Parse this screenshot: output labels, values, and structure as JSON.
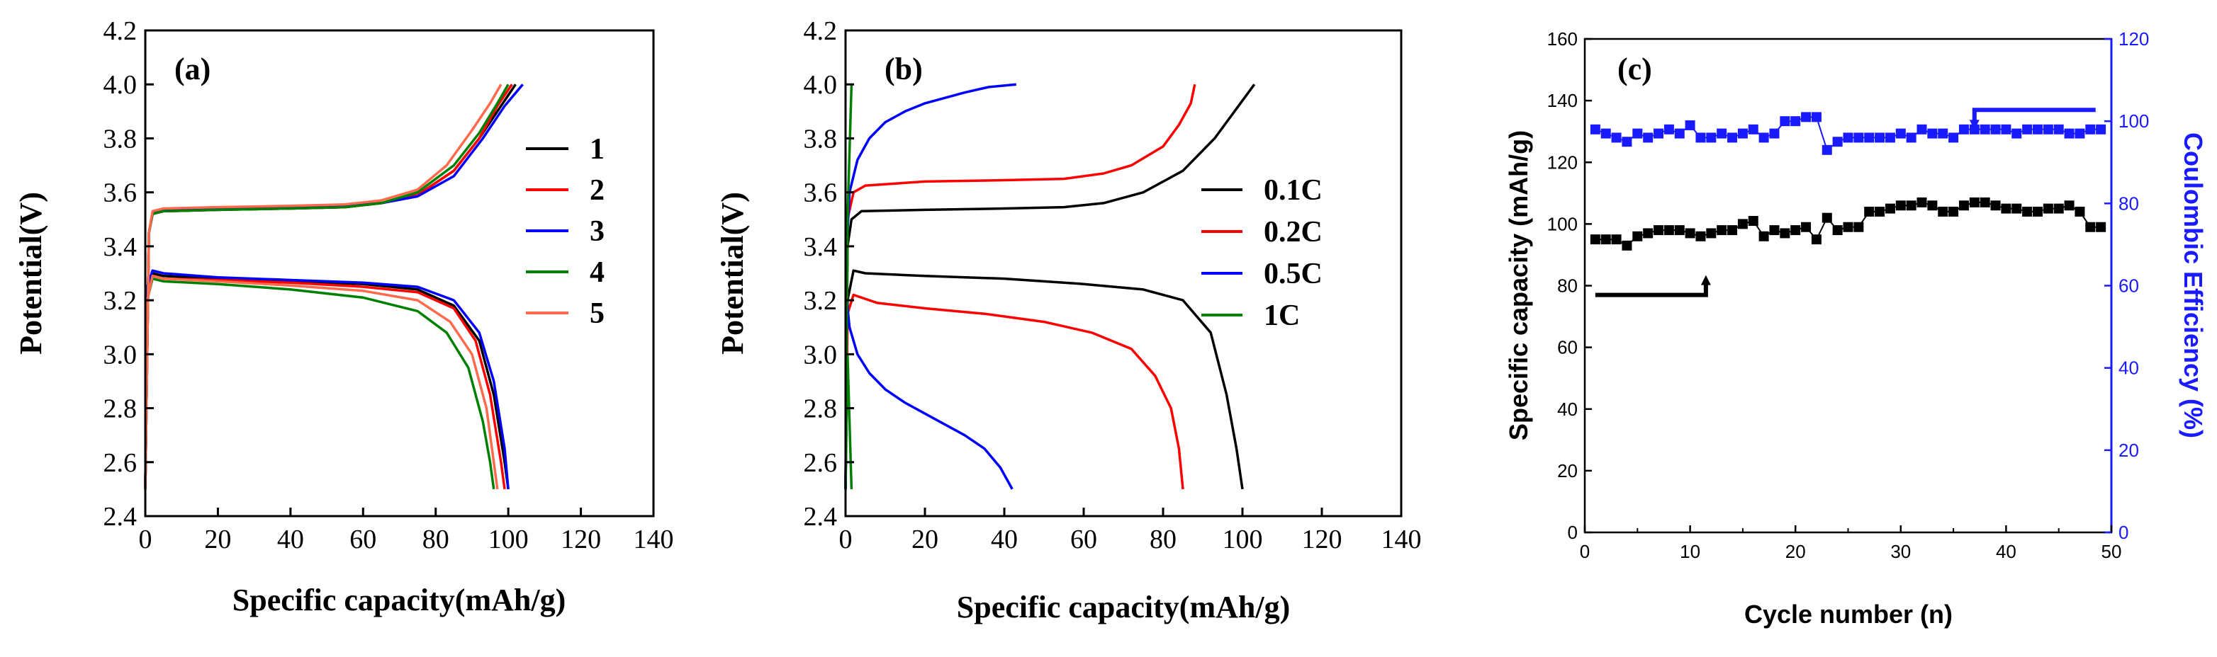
{
  "chart_data": [
    {
      "type": "line",
      "panel_label": "(a)",
      "xlabel": "Specific capacity(mAh/g)",
      "ylabel": "Potential(V)",
      "xlim": [
        0,
        140
      ],
      "ylim": [
        2.4,
        4.2
      ],
      "xticks": [
        "0",
        "20",
        "40",
        "60",
        "80",
        "100",
        "120",
        "140"
      ],
      "yticks": [
        "2.4",
        "2.6",
        "2.8",
        "3.0",
        "3.2",
        "3.4",
        "3.6",
        "3.8",
        "4.0",
        "4.2"
      ],
      "series": [
        {
          "name": "1",
          "color": "#000000",
          "charge": [
            [
              0,
              2.5
            ],
            [
              1,
              3.45
            ],
            [
              2,
              3.52
            ],
            [
              5,
              3.53
            ],
            [
              20,
              3.535
            ],
            [
              40,
              3.54
            ],
            [
              55,
              3.545
            ],
            [
              65,
              3.56
            ],
            [
              75,
              3.59
            ],
            [
              85,
              3.68
            ],
            [
              92,
              3.8
            ],
            [
              98,
              3.92
            ],
            [
              102,
              4.0
            ]
          ],
          "discharge": [
            [
              0,
              2.5
            ],
            [
              0.5,
              3.2
            ],
            [
              2,
              3.3
            ],
            [
              5,
              3.29
            ],
            [
              20,
              3.28
            ],
            [
              40,
              3.27
            ],
            [
              60,
              3.26
            ],
            [
              75,
              3.24
            ],
            [
              85,
              3.18
            ],
            [
              92,
              3.05
            ],
            [
              96,
              2.85
            ],
            [
              99,
              2.6
            ],
            [
              100,
              2.5
            ]
          ]
        },
        {
          "name": "2",
          "color": "#ff0000",
          "charge": [
            [
              0,
              2.5
            ],
            [
              1,
              3.45
            ],
            [
              2,
              3.52
            ],
            [
              5,
              3.53
            ],
            [
              20,
              3.535
            ],
            [
              40,
              3.54
            ],
            [
              55,
              3.545
            ],
            [
              65,
              3.56
            ],
            [
              75,
              3.59
            ],
            [
              85,
              3.68
            ],
            [
              92,
              3.8
            ],
            [
              97,
              3.92
            ],
            [
              101,
              4.0
            ]
          ],
          "discharge": [
            [
              0,
              2.5
            ],
            [
              0.5,
              3.2
            ],
            [
              2,
              3.29
            ],
            [
              5,
              3.28
            ],
            [
              20,
              3.275
            ],
            [
              40,
              3.265
            ],
            [
              60,
              3.25
            ],
            [
              75,
              3.23
            ],
            [
              85,
              3.17
            ],
            [
              91,
              3.05
            ],
            [
              95,
              2.85
            ],
            [
              98,
              2.6
            ],
            [
              99,
              2.5
            ]
          ]
        },
        {
          "name": "3",
          "color": "#0000ff",
          "charge": [
            [
              0,
              2.5
            ],
            [
              1,
              3.45
            ],
            [
              2,
              3.52
            ],
            [
              5,
              3.535
            ],
            [
              20,
              3.54
            ],
            [
              40,
              3.545
            ],
            [
              55,
              3.55
            ],
            [
              65,
              3.56
            ],
            [
              75,
              3.585
            ],
            [
              85,
              3.66
            ],
            [
              93,
              3.8
            ],
            [
              99,
              3.92
            ],
            [
              104,
              4.0
            ]
          ],
          "discharge": [
            [
              0,
              2.5
            ],
            [
              0.5,
              3.25
            ],
            [
              2,
              3.31
            ],
            [
              5,
              3.3
            ],
            [
              20,
              3.285
            ],
            [
              40,
              3.275
            ],
            [
              60,
              3.265
            ],
            [
              75,
              3.25
            ],
            [
              85,
              3.2
            ],
            [
              92,
              3.08
            ],
            [
              96,
              2.9
            ],
            [
              99,
              2.65
            ],
            [
              100,
              2.5
            ]
          ]
        },
        {
          "name": "4",
          "color": "#008000",
          "charge": [
            [
              0,
              2.5
            ],
            [
              1,
              3.45
            ],
            [
              2,
              3.52
            ],
            [
              5,
              3.53
            ],
            [
              20,
              3.535
            ],
            [
              40,
              3.54
            ],
            [
              55,
              3.545
            ],
            [
              65,
              3.56
            ],
            [
              75,
              3.6
            ],
            [
              85,
              3.7
            ],
            [
              92,
              3.82
            ],
            [
              97,
              3.93
            ],
            [
              100,
              4.0
            ]
          ],
          "discharge": [
            [
              0,
              2.5
            ],
            [
              0.5,
              3.2
            ],
            [
              2,
              3.28
            ],
            [
              5,
              3.27
            ],
            [
              20,
              3.26
            ],
            [
              40,
              3.24
            ],
            [
              60,
              3.21
            ],
            [
              75,
              3.16
            ],
            [
              83,
              3.08
            ],
            [
              89,
              2.95
            ],
            [
              93,
              2.75
            ],
            [
              95,
              2.6
            ],
            [
              96,
              2.5
            ]
          ]
        },
        {
          "name": "5",
          "color": "#ff6a4d",
          "charge": [
            [
              0,
              2.5
            ],
            [
              1,
              3.45
            ],
            [
              2,
              3.53
            ],
            [
              5,
              3.54
            ],
            [
              20,
              3.545
            ],
            [
              40,
              3.55
            ],
            [
              55,
              3.555
            ],
            [
              65,
              3.57
            ],
            [
              75,
              3.61
            ],
            [
              83,
              3.7
            ],
            [
              90,
              3.83
            ],
            [
              95,
              3.93
            ],
            [
              98,
              4.0
            ]
          ],
          "discharge": [
            [
              0,
              2.5
            ],
            [
              0.5,
              3.2
            ],
            [
              2,
              3.29
            ],
            [
              5,
              3.28
            ],
            [
              20,
              3.27
            ],
            [
              40,
              3.255
            ],
            [
              60,
              3.235
            ],
            [
              75,
              3.2
            ],
            [
              84,
              3.12
            ],
            [
              90,
              3.0
            ],
            [
              94,
              2.8
            ],
            [
              96,
              2.6
            ],
            [
              97,
              2.5
            ]
          ]
        }
      ]
    },
    {
      "type": "line",
      "panel_label": "(b)",
      "xlabel": "Specific capacity(mAh/g)",
      "ylabel": "Potential(V)",
      "xlim": [
        0,
        140
      ],
      "ylim": [
        2.4,
        4.2
      ],
      "xticks": [
        "0",
        "20",
        "40",
        "60",
        "80",
        "100",
        "120",
        "140"
      ],
      "yticks": [
        "2.4",
        "2.6",
        "2.8",
        "3.0",
        "3.2",
        "3.4",
        "3.6",
        "3.8",
        "4.0",
        "4.2"
      ],
      "series": [
        {
          "name": "0.1C",
          "color": "#000000",
          "charge": [
            [
              0,
              2.5
            ],
            [
              0.5,
              3.4
            ],
            [
              1.5,
              3.5
            ],
            [
              4,
              3.53
            ],
            [
              20,
              3.535
            ],
            [
              40,
              3.54
            ],
            [
              55,
              3.545
            ],
            [
              65,
              3.56
            ],
            [
              75,
              3.6
            ],
            [
              85,
              3.68
            ],
            [
              93,
              3.8
            ],
            [
              99,
              3.92
            ],
            [
              103,
              4.0
            ]
          ],
          "discharge": [
            [
              0,
              2.5
            ],
            [
              0.5,
              3.2
            ],
            [
              2,
              3.31
            ],
            [
              5,
              3.3
            ],
            [
              20,
              3.29
            ],
            [
              40,
              3.28
            ],
            [
              60,
              3.26
            ],
            [
              75,
              3.24
            ],
            [
              85,
              3.2
            ],
            [
              92,
              3.08
            ],
            [
              96,
              2.85
            ],
            [
              98.5,
              2.65
            ],
            [
              100,
              2.5
            ]
          ]
        },
        {
          "name": "0.2C",
          "color": "#ff0000",
          "charge": [
            [
              0,
              2.5
            ],
            [
              0.5,
              3.5
            ],
            [
              2,
              3.6
            ],
            [
              5,
              3.625
            ],
            [
              20,
              3.64
            ],
            [
              40,
              3.645
            ],
            [
              55,
              3.65
            ],
            [
              65,
              3.67
            ],
            [
              72,
              3.7
            ],
            [
              80,
              3.77
            ],
            [
              84,
              3.85
            ],
            [
              87,
              3.93
            ],
            [
              88,
              4.0
            ]
          ],
          "discharge": [
            [
              0,
              2.5
            ],
            [
              0.5,
              3.15
            ],
            [
              2,
              3.22
            ],
            [
              8,
              3.19
            ],
            [
              20,
              3.17
            ],
            [
              35,
              3.15
            ],
            [
              50,
              3.12
            ],
            [
              62,
              3.08
            ],
            [
              72,
              3.02
            ],
            [
              78,
              2.92
            ],
            [
              82,
              2.8
            ],
            [
              84,
              2.65
            ],
            [
              85,
              2.5
            ]
          ]
        },
        {
          "name": "0.5C",
          "color": "#0000ff",
          "charge": [
            [
              0,
              2.5
            ],
            [
              0.3,
              3.4
            ],
            [
              1,
              3.6
            ],
            [
              3,
              3.72
            ],
            [
              6,
              3.8
            ],
            [
              10,
              3.86
            ],
            [
              15,
              3.9
            ],
            [
              20,
              3.93
            ],
            [
              25,
              3.95
            ],
            [
              30,
              3.97
            ],
            [
              36,
              3.99
            ],
            [
              43,
              4.0
            ]
          ],
          "discharge": [
            [
              0,
              2.5
            ],
            [
              0.3,
              3.2
            ],
            [
              1,
              3.1
            ],
            [
              3,
              3.0
            ],
            [
              6,
              2.93
            ],
            [
              10,
              2.87
            ],
            [
              15,
              2.82
            ],
            [
              20,
              2.78
            ],
            [
              25,
              2.74
            ],
            [
              30,
              2.7
            ],
            [
              35,
              2.65
            ],
            [
              39,
              2.58
            ],
            [
              42,
              2.5
            ]
          ]
        },
        {
          "name": "1C",
          "color": "#008000",
          "charge": [
            [
              0,
              2.5
            ],
            [
              0.5,
              3.5
            ],
            [
              1.5,
              4.0
            ]
          ],
          "discharge": [
            [
              0,
              2.5
            ],
            [
              0.5,
              3.0
            ],
            [
              1.5,
              2.5
            ]
          ]
        }
      ]
    },
    {
      "type": "scatter",
      "panel_label": "(c)",
      "xlabel": "Cycle number (n)",
      "ylabel": "Specific capacity (mAh/g)",
      "ylabel_right": "Coulombic Efficiency (%)",
      "xlim": [
        0,
        50
      ],
      "ylim": [
        0,
        160
      ],
      "ylim_right": [
        0,
        120
      ],
      "xticks": [
        "0",
        "10",
        "20",
        "30",
        "40",
        "50"
      ],
      "yticks": [
        "0",
        "20",
        "40",
        "60",
        "80",
        "100",
        "120",
        "140",
        "160"
      ],
      "yticks_right": [
        "0",
        "20",
        "40",
        "60",
        "80",
        "100",
        "120"
      ],
      "x": [
        1,
        2,
        3,
        4,
        5,
        6,
        7,
        8,
        9,
        10,
        11,
        12,
        13,
        14,
        15,
        16,
        17,
        18,
        19,
        20,
        21,
        22,
        23,
        24,
        25,
        26,
        27,
        28,
        29,
        30,
        31,
        32,
        33,
        34,
        35,
        36,
        37,
        38,
        39,
        40,
        41,
        42,
        43,
        44,
        45,
        46,
        47,
        48,
        49
      ],
      "series": [
        {
          "name": "Specific capacity",
          "axis": "left",
          "color": "#000000",
          "values": [
            95,
            95,
            95,
            93,
            96,
            97,
            98,
            98,
            98,
            97,
            96,
            97,
            98,
            98,
            100,
            101,
            96,
            98,
            97,
            98,
            99,
            95,
            102,
            98,
            99,
            99,
            104,
            104,
            105,
            106,
            106,
            107,
            106,
            104,
            104,
            106,
            107,
            107,
            106,
            105,
            105,
            104,
            104,
            105,
            105,
            106,
            104,
            99,
            99
          ]
        },
        {
          "name": "Coulombic Efficiency",
          "axis": "right",
          "color": "#1a1aff",
          "values": [
            98,
            97,
            96,
            95,
            97,
            96,
            97,
            98,
            97,
            99,
            96,
            96,
            97,
            96,
            97,
            98,
            96,
            97,
            100,
            100,
            101,
            101,
            93,
            95,
            96,
            96,
            96,
            96,
            96,
            97,
            96,
            98,
            97,
            97,
            96,
            98,
            98,
            98,
            98,
            98,
            97,
            98,
            98,
            98,
            98,
            97,
            97,
            98,
            98
          ]
        }
      ],
      "arrows": [
        {
          "points_to": "left",
          "color": "#000000"
        },
        {
          "points_to": "right",
          "color": "#1a1aff"
        }
      ]
    }
  ]
}
